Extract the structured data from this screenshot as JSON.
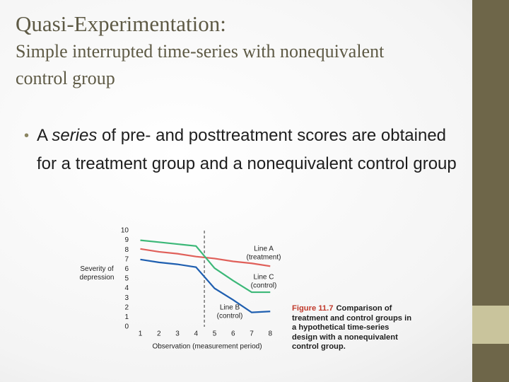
{
  "slide": {
    "title": "Quasi-Experimentation:",
    "subtitle": "Simple interrupted time-series with nonequivalent control group",
    "bullet": [
      "A ",
      "series",
      " of pre- and posttreatment scores are obtained for a treatment group and a nonequivalent control group"
    ]
  },
  "chart_data": {
    "type": "line",
    "ylabel": "Severity of depression",
    "xlabel": "Observation (measurement period)",
    "x": [
      1,
      2,
      3,
      4,
      5,
      6,
      7,
      8
    ],
    "xlim": [
      0.6,
      8.6
    ],
    "xticks": [
      1,
      2,
      3,
      4,
      5,
      6,
      7,
      8
    ],
    "ylim": [
      0,
      10
    ],
    "yticks": [
      0,
      1,
      2,
      3,
      4,
      5,
      6,
      7,
      8,
      9,
      10
    ],
    "treatment_x": 4.45,
    "series": [
      {
        "name": "Line A",
        "group": "(treatment)",
        "color": "#e0605a",
        "values": [
          8.1,
          7.8,
          7.6,
          7.3,
          7.1,
          6.8,
          6.6,
          6.3
        ]
      },
      {
        "name": "Line C",
        "group": "(control)",
        "color": "#3cb878",
        "values": [
          9.0,
          8.8,
          8.6,
          8.4,
          6.1,
          4.8,
          3.6,
          3.6
        ]
      },
      {
        "name": "Line B",
        "group": "(control)",
        "color": "#1f5fb0",
        "values": [
          7.0,
          6.7,
          6.5,
          6.2,
          4.0,
          2.8,
          1.5,
          1.6
        ]
      }
    ],
    "caption": {
      "figure": "Figure 11.7",
      "text": "Comparison of treatment and control groups in a hypothetical time-series design with a nonequivalent control group."
    }
  }
}
